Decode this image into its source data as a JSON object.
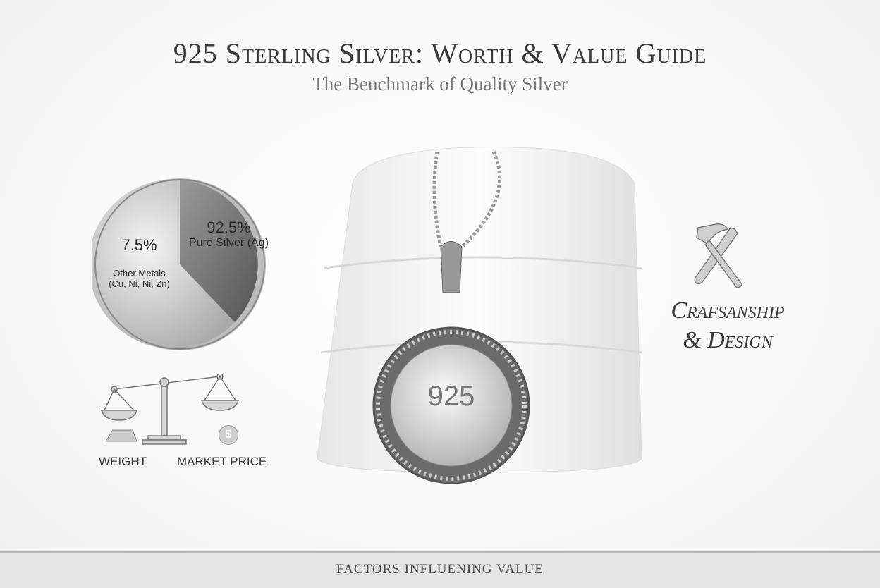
{
  "header": {
    "title": "925 Sterling Silver: Worth & Value Guide",
    "subtitle": "The Benchmark of Quality Silver"
  },
  "composition": {
    "slices": [
      {
        "percent_label": "92.5%",
        "label": "Pure Silver (Ag)",
        "value": 92.5,
        "color": "#6e6e6e"
      },
      {
        "percent_label": "7.5%",
        "label": "Other Metals",
        "sublabel": "(Cu, Ni, Ni, Zn)",
        "value": 7.5,
        "color": "#c8c8c8"
      }
    ]
  },
  "factors": {
    "weight_label": "WEIGHT",
    "market_price_label": "MARKET PRICE",
    "dollar_symbol": "$"
  },
  "pendant": {
    "stamp": "925"
  },
  "craftsmanship": {
    "line1": "Crafsanship",
    "line2": "& Design"
  },
  "footer": {
    "label": "FACTORS INFLUENING VALUE"
  }
}
